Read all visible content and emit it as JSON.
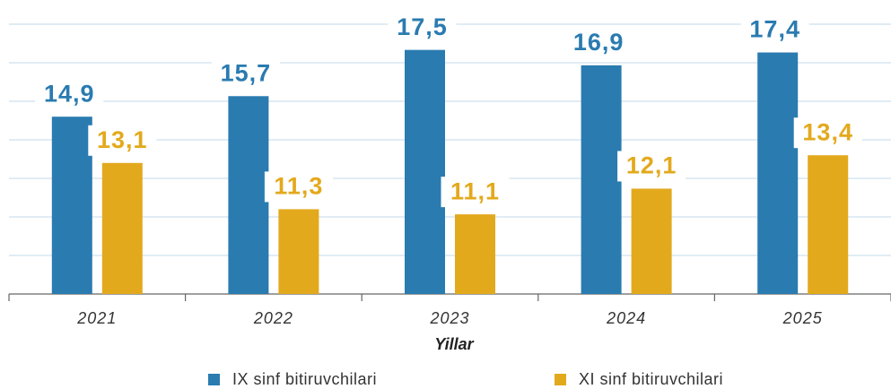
{
  "chart_data": {
    "type": "bar",
    "x_label": "Yillar",
    "categories": [
      "2021",
      "2022",
      "2023",
      "2024",
      "2025"
    ],
    "series": [
      {
        "name": "IX sinf bitiruvchilari",
        "color": "#2a7bb0",
        "values": [
          14.9,
          15.7,
          17.5,
          16.9,
          17.4
        ],
        "value_labels": [
          "14,9",
          "15,7",
          "17,5",
          "16,9",
          "17,4"
        ]
      },
      {
        "name": "XI sinf bitiruvchilari",
        "color": "#e3a91d",
        "values": [
          13.1,
          11.3,
          11.1,
          12.1,
          13.4
        ],
        "value_labels": [
          "13,1",
          "11,3",
          "11,1",
          "12,1",
          "13,4"
        ]
      }
    ],
    "ylim": [
      8,
      18.5
    ],
    "yticks": [
      8,
      9.5,
      11,
      12.5,
      14,
      15.5,
      17,
      18.5
    ],
    "grid": true
  }
}
